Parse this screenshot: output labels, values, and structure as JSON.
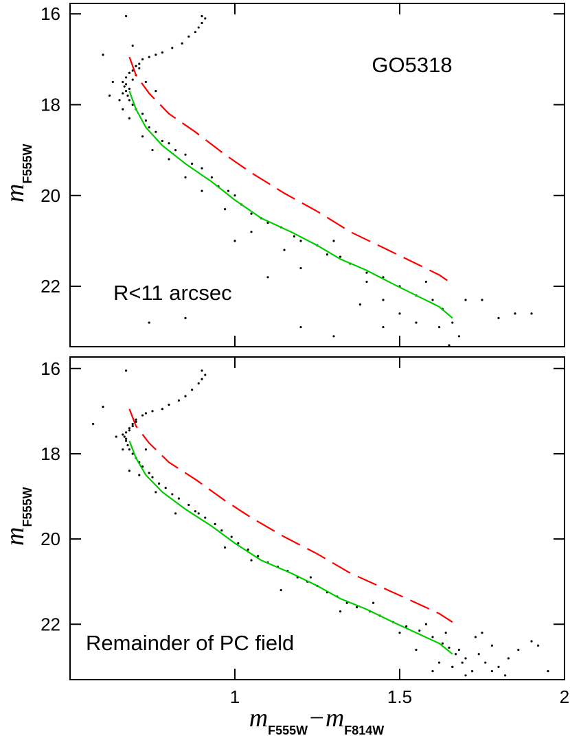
{
  "chart_data": [
    {
      "type": "scatter",
      "annotations": [
        "GO5318",
        "R<11 arcsec"
      ],
      "ylabel": {
        "text": "m",
        "sub": "F555W"
      },
      "xlim": [
        0.5,
        2.0
      ],
      "ylim": [
        23.33,
        15.77
      ],
      "xticks": [
        1,
        1.5,
        2
      ],
      "yticks": [
        16,
        18,
        20,
        22
      ],
      "color": "#000000",
      "x": [
        0.9,
        0.91,
        0.9,
        0.89,
        0.88,
        0.86,
        0.84,
        0.81,
        0.78,
        0.76,
        0.74,
        0.72,
        0.71,
        0.7,
        0.69,
        0.68,
        0.67,
        0.66,
        0.665,
        0.67,
        0.675,
        0.68,
        0.69,
        0.7,
        0.72,
        0.73,
        0.74,
        0.76,
        0.78,
        0.8,
        0.82,
        0.85,
        0.87,
        0.9,
        0.93,
        0.95,
        0.98,
        1.0,
        1.02,
        1.05,
        1.08,
        1.1,
        1.14,
        1.18,
        1.2,
        1.25,
        1.28,
        1.32,
        1.35,
        1.4,
        1.45,
        1.5,
        1.55,
        1.6,
        1.63,
        1.66,
        0.62,
        0.63,
        0.65,
        0.66,
        0.68,
        0.72,
        0.75,
        0.8,
        0.85,
        0.9,
        0.97,
        1.05,
        1.15,
        1.2,
        1.3,
        1.4,
        1.45,
        1.5,
        1.55,
        1.58,
        1.62,
        1.7,
        1.75,
        1.8,
        1.85,
        1.9,
        1.68,
        1.45,
        1.3,
        0.85,
        0.74,
        1.1,
        1.0,
        0.6,
        0.67,
        0.69,
        0.73,
        0.76,
        1.65,
        1.2,
        1.38,
        0.67,
        0.68,
        0.66,
        0.69,
        0.7,
        0.71
      ],
      "y": [
        16.05,
        16.1,
        16.2,
        16.3,
        16.4,
        16.5,
        16.65,
        16.75,
        16.85,
        16.9,
        16.95,
        17.0,
        17.1,
        17.15,
        17.25,
        17.3,
        17.4,
        17.5,
        17.6,
        17.7,
        17.8,
        17.9,
        18.0,
        18.1,
        18.2,
        18.35,
        18.5,
        18.6,
        18.8,
        18.85,
        19.0,
        19.1,
        19.3,
        19.4,
        19.6,
        19.8,
        19.9,
        20.0,
        20.2,
        20.4,
        20.5,
        20.6,
        20.7,
        20.9,
        21.0,
        21.1,
        21.3,
        21.35,
        21.5,
        21.7,
        21.8,
        22.0,
        22.2,
        22.3,
        22.5,
        22.8,
        17.8,
        17.5,
        17.9,
        18.1,
        18.3,
        18.7,
        19.0,
        19.2,
        19.6,
        19.9,
        20.3,
        20.8,
        21.2,
        21.6,
        21.0,
        21.9,
        22.3,
        22.6,
        22.8,
        21.9,
        22.9,
        22.3,
        22.3,
        22.7,
        22.6,
        22.6,
        23.1,
        22.9,
        23.1,
        22.7,
        22.8,
        21.8,
        21.0,
        16.9,
        16.05,
        16.7,
        17.5,
        17.7,
        23.3,
        22.9,
        22.4,
        17.55,
        17.65,
        17.75,
        17.45,
        17.35,
        17.2
      ],
      "lines": [
        {
          "color": "#ff0000",
          "dash": true,
          "x": [
            0.68,
            0.7,
            0.74,
            0.8,
            0.88,
            0.97,
            1.05,
            1.15,
            1.25,
            1.35,
            1.45,
            1.55,
            1.62,
            1.66
          ],
          "y": [
            16.95,
            17.35,
            17.75,
            18.2,
            18.6,
            19.1,
            19.5,
            19.95,
            20.35,
            20.8,
            21.15,
            21.5,
            21.75,
            21.95
          ]
        },
        {
          "color": "#00cc00",
          "dash": false,
          "x": [
            0.68,
            0.7,
            0.73,
            0.78,
            0.85,
            0.93,
            1.0,
            1.08,
            1.17,
            1.25,
            1.32,
            1.4,
            1.48,
            1.55,
            1.62,
            1.66
          ],
          "y": [
            17.7,
            18.1,
            18.5,
            18.9,
            19.3,
            19.7,
            20.1,
            20.5,
            20.8,
            21.1,
            21.4,
            21.65,
            21.95,
            22.2,
            22.45,
            22.7
          ]
        }
      ]
    },
    {
      "type": "scatter",
      "annotations": [
        "Remainder of PC field"
      ],
      "ylabel": {
        "text": "m",
        "sub": "F555W"
      },
      "xlabel": [
        {
          "text": "m",
          "sub": "F555W"
        },
        {
          "text": "−m",
          "sub": "F814W"
        }
      ],
      "xlim": [
        0.5,
        2.0
      ],
      "ylim": [
        23.3,
        15.73
      ],
      "xticks": [
        1,
        1.5,
        2
      ],
      "yticks": [
        16,
        18,
        20,
        22
      ],
      "color": "#000000",
      "x": [
        0.9,
        0.91,
        0.9,
        0.89,
        0.87,
        0.85,
        0.83,
        0.8,
        0.78,
        0.75,
        0.73,
        0.72,
        0.7,
        0.69,
        0.68,
        0.67,
        0.665,
        0.67,
        0.675,
        0.68,
        0.69,
        0.7,
        0.71,
        0.72,
        0.74,
        0.75,
        0.77,
        0.79,
        0.81,
        0.83,
        0.86,
        0.88,
        0.91,
        0.94,
        0.96,
        0.99,
        1.01,
        1.04,
        1.07,
        1.1,
        1.13,
        1.16,
        1.19,
        1.22,
        1.25,
        1.28,
        1.31,
        1.34,
        1.37,
        1.41,
        1.44,
        1.48,
        1.52,
        1.56,
        1.6,
        1.63,
        1.65,
        1.67,
        0.66,
        0.68,
        0.71,
        0.76,
        0.82,
        0.89,
        0.97,
        1.05,
        1.14,
        1.23,
        1.32,
        1.42,
        1.5,
        1.58,
        1.62,
        1.66,
        1.68,
        1.7,
        1.72,
        1.74,
        1.76,
        1.78,
        1.8,
        1.83,
        1.86,
        1.9,
        1.95,
        1.7,
        1.73,
        1.66,
        1.6,
        1.55,
        1.75,
        1.82,
        1.92,
        0.6,
        0.57,
        0.64,
        0.67,
        0.73,
        1.78,
        1.64,
        1.69,
        0.66,
        0.67,
        0.68,
        0.69,
        0.7
      ],
      "y": [
        16.05,
        16.15,
        16.25,
        16.35,
        16.5,
        16.65,
        16.75,
        16.85,
        16.95,
        17.0,
        17.05,
        17.1,
        17.2,
        17.3,
        17.4,
        17.5,
        17.6,
        17.7,
        17.8,
        17.9,
        18.0,
        18.1,
        18.2,
        18.3,
        18.45,
        18.55,
        18.7,
        18.8,
        18.95,
        19.05,
        19.2,
        19.35,
        19.5,
        19.65,
        19.8,
        19.95,
        20.1,
        20.25,
        20.4,
        20.55,
        20.65,
        20.75,
        20.9,
        21.0,
        21.1,
        21.25,
        21.35,
        21.5,
        21.6,
        21.7,
        21.8,
        21.95,
        22.05,
        22.15,
        22.3,
        22.45,
        22.55,
        22.7,
        17.9,
        18.4,
        18.5,
        18.9,
        19.4,
        19.4,
        20.2,
        20.5,
        21.2,
        20.9,
        21.7,
        21.5,
        22.2,
        22.0,
        22.9,
        23.0,
        22.6,
        22.8,
        23.1,
        22.7,
        22.9,
        22.5,
        23.0,
        22.8,
        22.6,
        22.4,
        23.1,
        23.2,
        22.3,
        23.0,
        23.1,
        22.6,
        22.2,
        23.2,
        22.5,
        16.9,
        17.3,
        17.6,
        16.05,
        17.9,
        23.1,
        22.2,
        22.9,
        17.55,
        17.65,
        17.45,
        17.35,
        17.25
      ],
      "lines": [
        {
          "color": "#ff0000",
          "dash": true,
          "x": [
            0.68,
            0.7,
            0.74,
            0.8,
            0.88,
            0.97,
            1.05,
            1.15,
            1.25,
            1.35,
            1.45,
            1.55,
            1.62,
            1.66
          ],
          "y": [
            16.95,
            17.35,
            17.75,
            18.2,
            18.6,
            19.1,
            19.5,
            19.95,
            20.35,
            20.8,
            21.15,
            21.5,
            21.75,
            21.95
          ]
        },
        {
          "color": "#00cc00",
          "dash": false,
          "x": [
            0.68,
            0.7,
            0.73,
            0.78,
            0.85,
            0.93,
            1.0,
            1.08,
            1.17,
            1.25,
            1.32,
            1.4,
            1.48,
            1.55,
            1.62,
            1.66
          ],
          "y": [
            17.7,
            18.1,
            18.5,
            18.9,
            19.3,
            19.7,
            20.1,
            20.5,
            20.8,
            21.1,
            21.4,
            21.65,
            21.95,
            22.2,
            22.45,
            22.7
          ]
        }
      ]
    }
  ]
}
